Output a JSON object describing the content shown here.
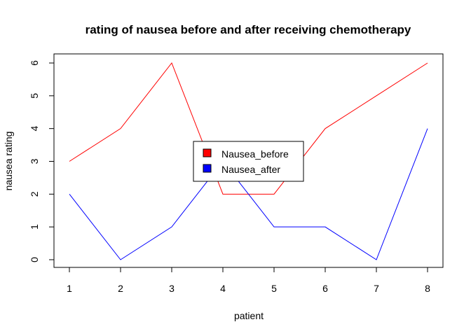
{
  "chart_data": {
    "type": "line",
    "title": "rating of nausea before and after receiving chemotherapy",
    "xlabel": "patient",
    "ylabel": "nausea rating",
    "x": [
      1,
      2,
      3,
      4,
      5,
      6,
      7,
      8
    ],
    "xlim": [
      1,
      8
    ],
    "ylim": [
      0,
      6
    ],
    "xticks": [
      1,
      2,
      3,
      4,
      5,
      6,
      7,
      8
    ],
    "yticks": [
      0,
      1,
      2,
      3,
      4,
      5,
      6
    ],
    "grid": false,
    "legend_position": "center",
    "series": [
      {
        "name": "Nausea_before",
        "color": "#ff0000",
        "values": [
          3,
          4,
          6,
          2,
          2,
          4,
          5,
          6
        ]
      },
      {
        "name": "Nausea_after",
        "color": "#0000ff",
        "values": [
          2,
          0,
          1,
          3,
          1,
          1,
          0,
          4
        ]
      }
    ]
  }
}
